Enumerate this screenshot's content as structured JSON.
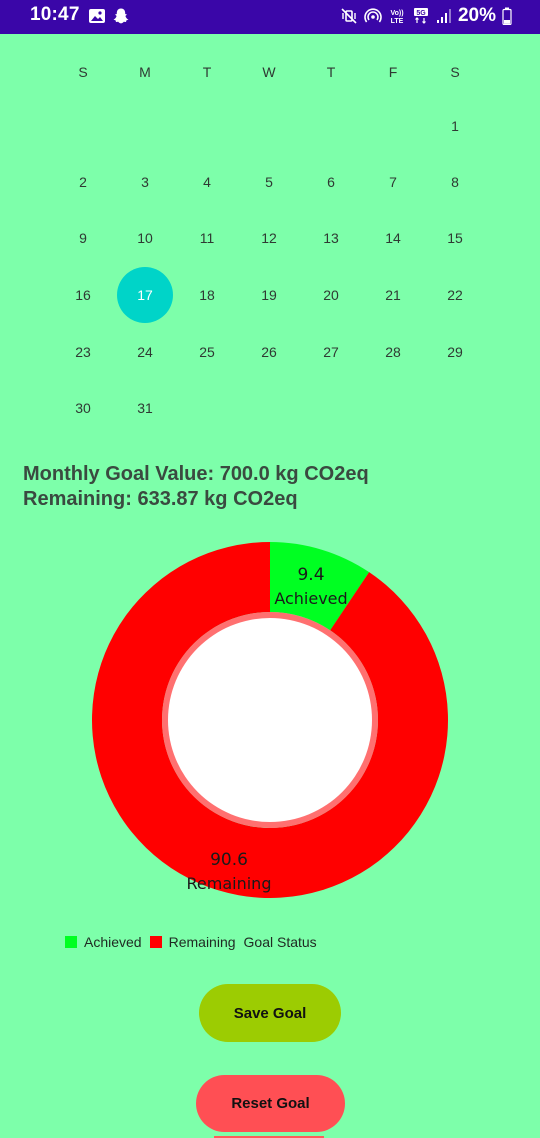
{
  "status_bar": {
    "time": "10:47",
    "battery_percent": "20%",
    "left_icons": [
      "gallery-icon",
      "snapchat-icon"
    ],
    "right_icons": [
      "mute-vibrate-icon",
      "hotspot-icon",
      "volte-icon",
      "5g-icon",
      "signal-icon",
      "battery-icon"
    ],
    "volte_label": "Vo)) LTE",
    "network_label": "5G",
    "background_color": "#3a06a8"
  },
  "calendar": {
    "weekdays": [
      "S",
      "M",
      "T",
      "W",
      "T",
      "F",
      "S"
    ],
    "weeks": [
      [
        "",
        "",
        "",
        "",
        "",
        "",
        "1"
      ],
      [
        "2",
        "3",
        "4",
        "5",
        "6",
        "7",
        "8"
      ],
      [
        "9",
        "10",
        "11",
        "12",
        "13",
        "14",
        "15"
      ],
      [
        "16",
        "17",
        "18",
        "19",
        "20",
        "21",
        "22"
      ],
      [
        "23",
        "24",
        "25",
        "26",
        "27",
        "28",
        "29"
      ],
      [
        "30",
        "31",
        "",
        "",
        "",
        "",
        ""
      ]
    ],
    "selected_day": "17",
    "selected_color": "#00d4c8"
  },
  "goal": {
    "monthly_goal_label": "Monthly Goal Value: 700.0 kg CO2eq",
    "remaining_label": "Remaining: 633.87 kg CO2eq"
  },
  "chart_data": {
    "type": "pie",
    "donut": true,
    "categories": [
      "Achieved",
      "Remaining"
    ],
    "values": [
      9.4,
      90.6
    ],
    "slice_labels": [
      {
        "value": "9.4",
        "label": "Achieved"
      },
      {
        "value": "90.6",
        "label": "Remaining"
      }
    ],
    "colors": [
      "#00ff22",
      "#ff0000"
    ],
    "legend": [
      "Achieved",
      "Remaining"
    ],
    "description_label": "Goal Status",
    "legend_position": "bottom-left"
  },
  "buttons": {
    "save_label": "Save Goal",
    "reset_label": "Reset Goal"
  },
  "colors": {
    "background": "#7dffaa",
    "save_button": "#9ccc02",
    "reset_button": "#ff4f54"
  }
}
